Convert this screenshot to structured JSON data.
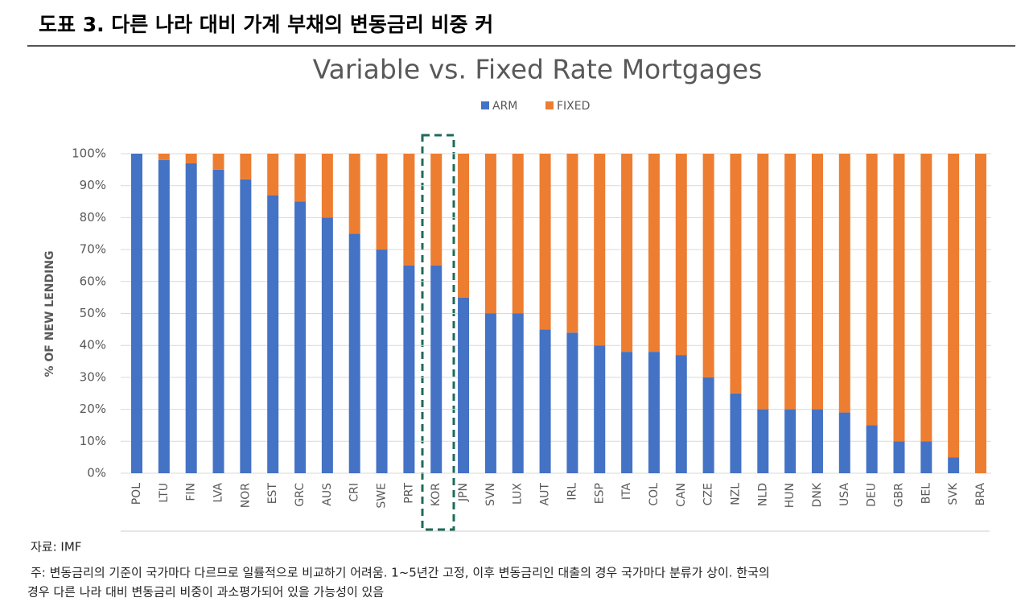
{
  "header": {
    "title": "도표 3. 다른 나라 대비 가계 부채의 변동금리 비중 커"
  },
  "chart_data": {
    "type": "stacked_bar",
    "title": "Variable vs. Fixed Rate Mortgages",
    "y_label": "% OF NEW LENDING",
    "categories": [
      "POL",
      "LTU",
      "FIN",
      "LVA",
      "NOR",
      "EST",
      "GRC",
      "AUS",
      "CRI",
      "SWE",
      "PRT",
      "KOR",
      "JPN",
      "SVN",
      "LUX",
      "AUT",
      "IRL",
      "ESP",
      "ITA",
      "COL",
      "CAN",
      "CZE",
      "NZL",
      "NLD",
      "HUN",
      "DNK",
      "USA",
      "DEU",
      "GBR",
      "BEL",
      "SVK",
      "BRA"
    ],
    "series": [
      {
        "name": "ARM",
        "color": "#4472c4",
        "values": [
          100,
          98,
          97,
          95,
          92,
          87,
          85,
          80,
          75,
          70,
          65,
          65,
          55,
          50,
          50,
          45,
          44,
          40,
          38,
          38,
          37,
          30,
          25,
          20,
          20,
          20,
          19,
          15,
          10,
          10,
          5,
          0
        ]
      },
      {
        "name": "FIXED",
        "color": "#ed7d31",
        "values": [
          0,
          2,
          3,
          5,
          8,
          13,
          15,
          20,
          25,
          30,
          35,
          35,
          45,
          50,
          50,
          55,
          56,
          60,
          62,
          62,
          63,
          70,
          75,
          80,
          80,
          80,
          81,
          85,
          90,
          90,
          95,
          100
        ]
      }
    ],
    "ylim": [
      0,
      100
    ],
    "yticks": [
      {
        "value": 0,
        "label": "0%"
      },
      {
        "value": 10,
        "label": "10%"
      },
      {
        "value": 20,
        "label": "20%"
      },
      {
        "value": 30,
        "label": "30%"
      },
      {
        "value": 40,
        "label": "40%"
      },
      {
        "value": 50,
        "label": "50%"
      },
      {
        "value": 60,
        "label": "60%"
      },
      {
        "value": 70,
        "label": "70%"
      },
      {
        "value": 80,
        "label": "80%"
      },
      {
        "value": 90,
        "label": "90%"
      },
      {
        "value": 100,
        "label": "100%"
      }
    ],
    "grid": true,
    "legend": "top"
  },
  "footer": {
    "source": "자료: IMF",
    "note_line1": "주: 변동금리의 기준이 국가마다 다르므로 일률적으로 비교하기 어려움. 1~5년간 고정, 이후 변동금리인 대출의 경우 국가마다 분류가 상이. 한국의",
    "note_line2": "경우 다른 나라 대비 변동금리 비중이 과소평가되어 있을 가능성이 있음"
  }
}
